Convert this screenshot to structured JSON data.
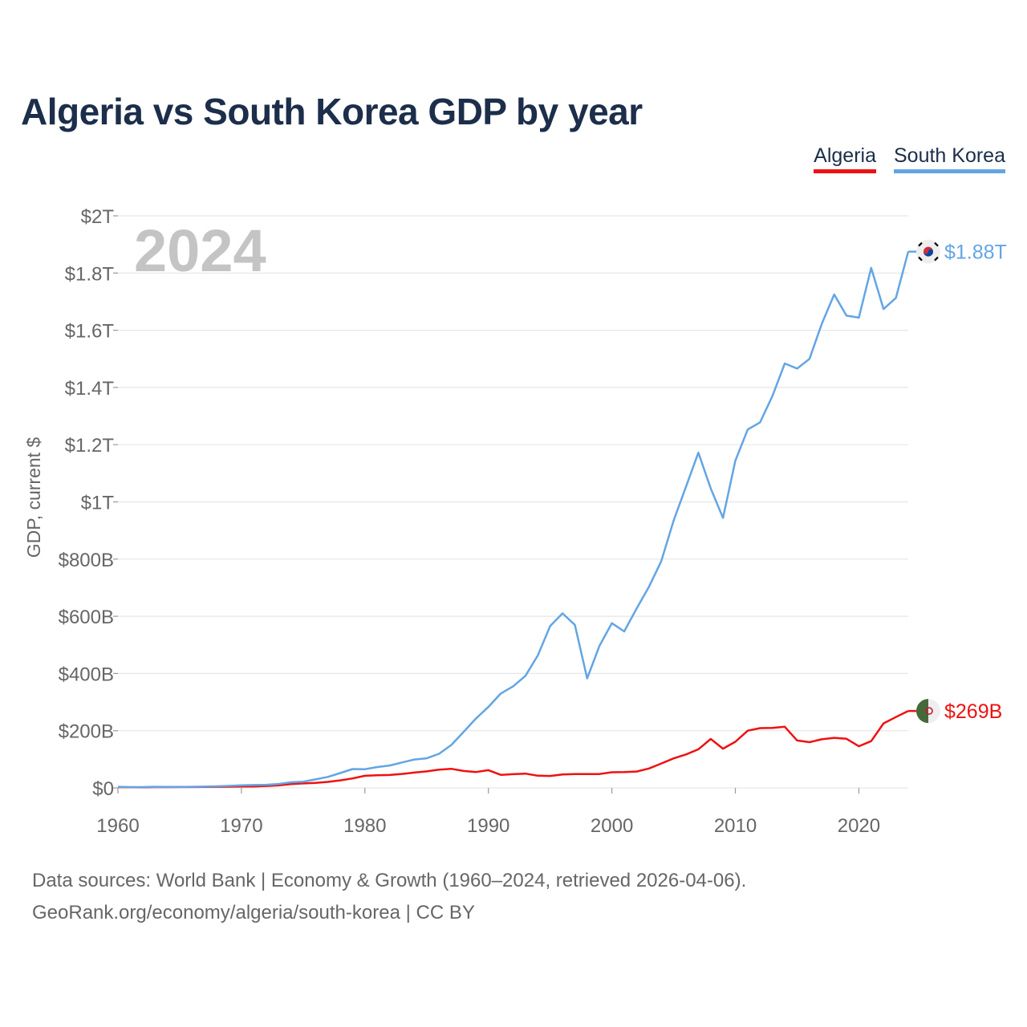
{
  "chart_data": {
    "type": "line",
    "title": "Algeria vs South Korea GDP by year",
    "ylabel": "GDP, current $",
    "xlabel": "",
    "xlim": [
      1960,
      2024
    ],
    "ylim": [
      0,
      2000
    ],
    "y_unit": "billions USD",
    "year_watermark": "2024",
    "x_ticks": [
      1960,
      1970,
      1980,
      1990,
      2000,
      2010,
      2020
    ],
    "x_tick_labels": [
      "1960",
      "1970",
      "1980",
      "1990",
      "2000",
      "2010",
      "2020"
    ],
    "y_ticks": [
      0,
      200,
      400,
      600,
      800,
      1000,
      1200,
      1400,
      1600,
      1800,
      2000
    ],
    "y_tick_labels": [
      "$0",
      "$200B",
      "$400B",
      "$600B",
      "$800B",
      "$1T",
      "$1.2T",
      "$1.4T",
      "$1.6T",
      "$1.8T",
      "$2T"
    ],
    "grid": true,
    "legend_position": "top-right",
    "series": [
      {
        "name": "Algeria",
        "color": "#ee1111",
        "end_label": "$269B",
        "flag": "algeria-flag",
        "x": [
          1960,
          1961,
          1962,
          1963,
          1964,
          1965,
          1966,
          1967,
          1968,
          1969,
          1970,
          1971,
          1972,
          1973,
          1974,
          1975,
          1976,
          1977,
          1978,
          1979,
          1980,
          1981,
          1982,
          1983,
          1984,
          1985,
          1986,
          1987,
          1988,
          1989,
          1990,
          1991,
          1992,
          1993,
          1994,
          1995,
          1996,
          1997,
          1998,
          1999,
          2000,
          2001,
          2002,
          2003,
          2004,
          2005,
          2006,
          2007,
          2008,
          2009,
          2010,
          2011,
          2012,
          2013,
          2014,
          2015,
          2016,
          2017,
          2018,
          2019,
          2020,
          2021,
          2022,
          2023,
          2024
        ],
        "values": [
          2.7,
          2.4,
          2.0,
          2.7,
          2.9,
          3.1,
          3.2,
          3.5,
          3.9,
          4.3,
          4.9,
          5.1,
          6.8,
          8.7,
          13.2,
          15.6,
          17.7,
          21.0,
          26.4,
          33.2,
          42.3,
          44.3,
          45.2,
          48.8,
          53.7,
          57.9,
          63.7,
          66.7,
          59.1,
          55.6,
          62.0,
          45.7,
          48.0,
          49.9,
          42.5,
          41.8,
          46.9,
          48.2,
          48.2,
          48.6,
          54.8,
          55.2,
          57.1,
          68.0,
          85.3,
          103.2,
          117.0,
          134.9,
          171.0,
          137.2,
          161.2,
          200.0,
          209.0,
          209.8,
          213.8,
          165.9,
          160.0,
          170.0,
          175.0,
          171.8,
          145.7,
          163.5,
          225.6,
          247.6,
          269.0
        ]
      },
      {
        "name": "South Korea",
        "color": "#63a5e4",
        "end_label": "$1.88T",
        "flag": "south-korea-flag",
        "x": [
          1960,
          1961,
          1962,
          1963,
          1964,
          1965,
          1966,
          1967,
          1968,
          1969,
          1970,
          1971,
          1972,
          1973,
          1974,
          1975,
          1976,
          1977,
          1978,
          1979,
          1980,
          1981,
          1982,
          1983,
          1984,
          1985,
          1986,
          1987,
          1988,
          1989,
          1990,
          1991,
          1992,
          1993,
          1994,
          1995,
          1996,
          1997,
          1998,
          1999,
          2000,
          2001,
          2002,
          2003,
          2004,
          2005,
          2006,
          2007,
          2008,
          2009,
          2010,
          2011,
          2012,
          2013,
          2014,
          2015,
          2016,
          2017,
          2018,
          2019,
          2020,
          2021,
          2022,
          2023,
          2024
        ],
        "values": [
          4.0,
          2.4,
          2.8,
          3.9,
          3.5,
          3.1,
          3.9,
          4.6,
          5.6,
          7.0,
          9.0,
          10.0,
          10.9,
          13.8,
          19.5,
          21.8,
          29.8,
          38.4,
          52.0,
          66.0,
          65.4,
          72.9,
          78.4,
          88.8,
          99.4,
          103.5,
          119.3,
          150.0,
          196.0,
          243.0,
          283.0,
          330.0,
          355.0,
          392.0,
          463.0,
          566.0,
          610.0,
          570.0,
          383.0,
          497.0,
          576.0,
          547.0,
          627.0,
          703.0,
          793.0,
          935.0,
          1053.0,
          1172.0,
          1047.0,
          944.0,
          1144.0,
          1253.0,
          1278.0,
          1370.0,
          1484.0,
          1466.0,
          1500.0,
          1623.0,
          1725.0,
          1651.0,
          1644.0,
          1818.0,
          1674.0,
          1713.0,
          1875.0
        ]
      }
    ],
    "sources_text": "Data sources: World Bank | Economy & Growth (1960–2024, retrieved 2026-04-06).",
    "link_text": "GeoRank.org/economy/algeria/south-korea | CC BY"
  }
}
